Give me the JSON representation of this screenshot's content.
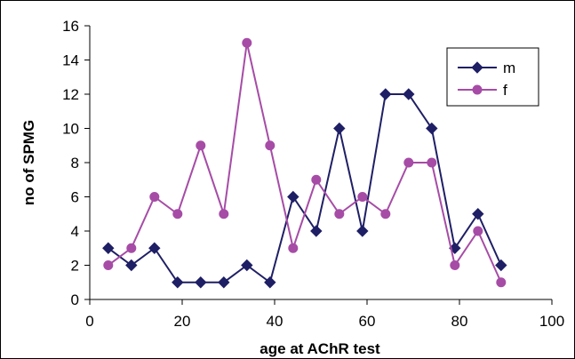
{
  "chart_data": {
    "type": "line",
    "xlabel": "age at AChR test",
    "ylabel": "no of SPMG",
    "xlim": [
      0,
      100
    ],
    "ylim": [
      0,
      16
    ],
    "xticks": [
      0,
      20,
      40,
      60,
      80,
      100
    ],
    "yticks": [
      0,
      2,
      4,
      6,
      8,
      10,
      12,
      14,
      16
    ],
    "grid": false,
    "legend": {
      "placement": "top-right"
    },
    "series": [
      {
        "name": "m",
        "color": "#1f1f66",
        "marker": "diamond",
        "x": [
          4,
          9,
          14,
          19,
          24,
          29,
          34,
          39,
          44,
          49,
          54,
          59,
          64,
          69,
          74,
          79,
          84,
          89
        ],
        "y": [
          3,
          2,
          3,
          1,
          1,
          1,
          2,
          1,
          6,
          4,
          10,
          4,
          12,
          12,
          10,
          3,
          5,
          2
        ]
      },
      {
        "name": "f",
        "color": "#a64ca6",
        "marker": "circle",
        "x": [
          4,
          9,
          14,
          19,
          24,
          29,
          34,
          39,
          44,
          49,
          54,
          59,
          64,
          69,
          74,
          79,
          84,
          89
        ],
        "y": [
          2,
          3,
          6,
          5,
          9,
          5,
          15,
          9,
          3,
          7,
          5,
          6,
          5,
          8,
          8,
          2,
          4,
          1
        ]
      }
    ]
  }
}
